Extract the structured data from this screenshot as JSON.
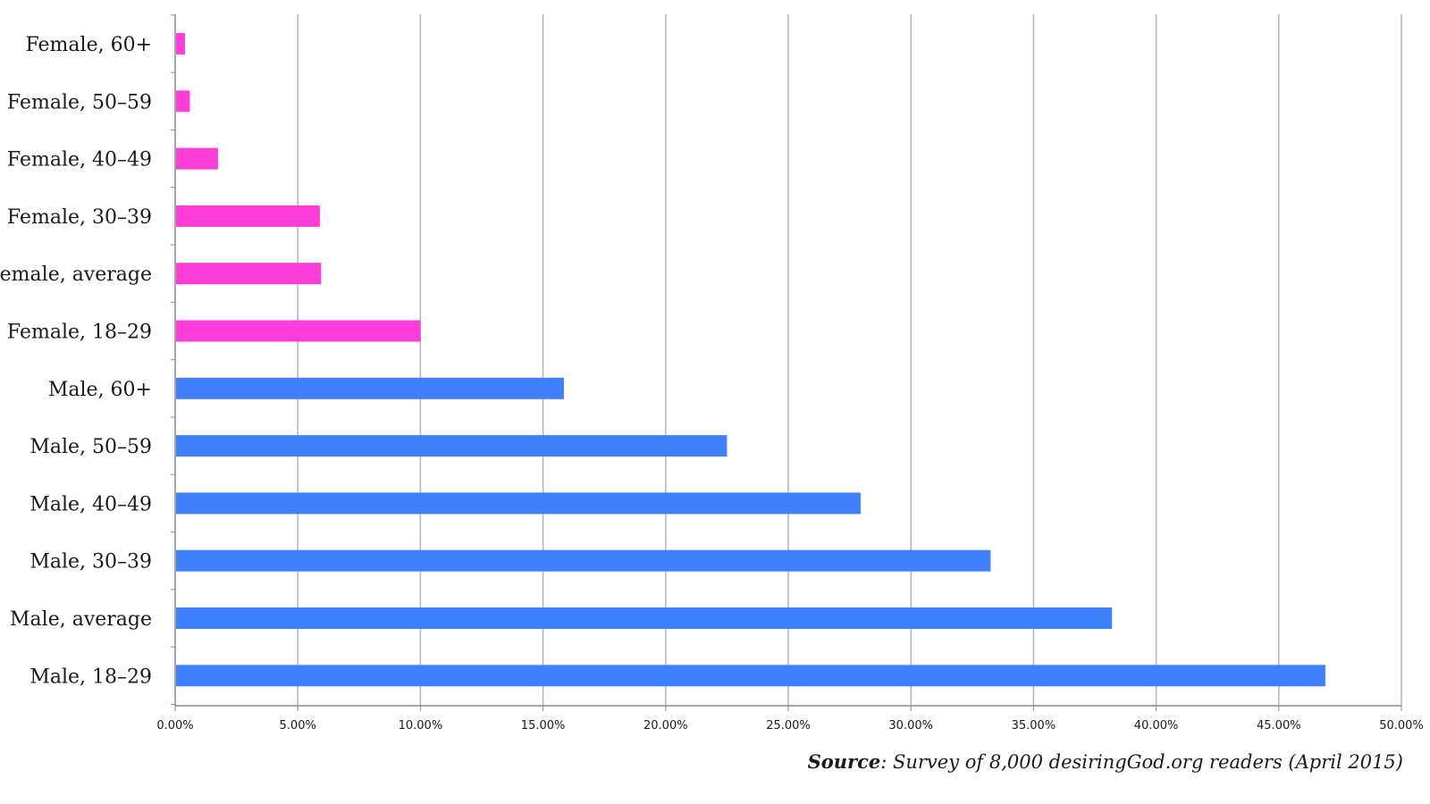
{
  "chart_data": {
    "type": "bar",
    "orientation": "horizontal",
    "categories": [
      "Female, 60+",
      "Female, 50–59",
      "Female, 40–49",
      "Female, 30–39",
      "Female, average",
      "Female, 18–29",
      "Male, 60+",
      "Male, 50–59",
      "Male, 40–49",
      "Male, 30–39",
      "Male, average",
      "Male, 18–29"
    ],
    "values": [
      0.4,
      0.6,
      1.75,
      5.9,
      5.95,
      10.0,
      15.85,
      22.5,
      27.95,
      33.25,
      38.2,
      46.9
    ],
    "bar_colors": [
      "#ff3dd8",
      "#ff3dd8",
      "#ff3dd8",
      "#ff3dd8",
      "#ff3dd8",
      "#ff3dd8",
      "#3f80ff",
      "#3f80ff",
      "#3f80ff",
      "#3f80ff",
      "#3f80ff",
      "#3f80ff"
    ],
    "xlim": [
      0,
      50
    ],
    "x_ticks": [
      0,
      5,
      10,
      15,
      20,
      25,
      30,
      35,
      40,
      45,
      50
    ],
    "x_tick_labels": [
      "0.00%",
      "5.00%",
      "10.00%",
      "15.00%",
      "20.00%",
      "25.00%",
      "30.00%",
      "35.00%",
      "40.00%",
      "45.00%",
      "50.00%"
    ],
    "grid": "vertical",
    "title": "",
    "xlabel": "",
    "ylabel": ""
  },
  "source": {
    "label": "Source",
    "text": ": Survey of 8,000 desiringGod.org readers (April 2015)"
  },
  "colors": {
    "female": "#ff3dd8",
    "male": "#3f80ff",
    "gridline": "#b4b4b4",
    "axis": "#8a8a8a"
  }
}
